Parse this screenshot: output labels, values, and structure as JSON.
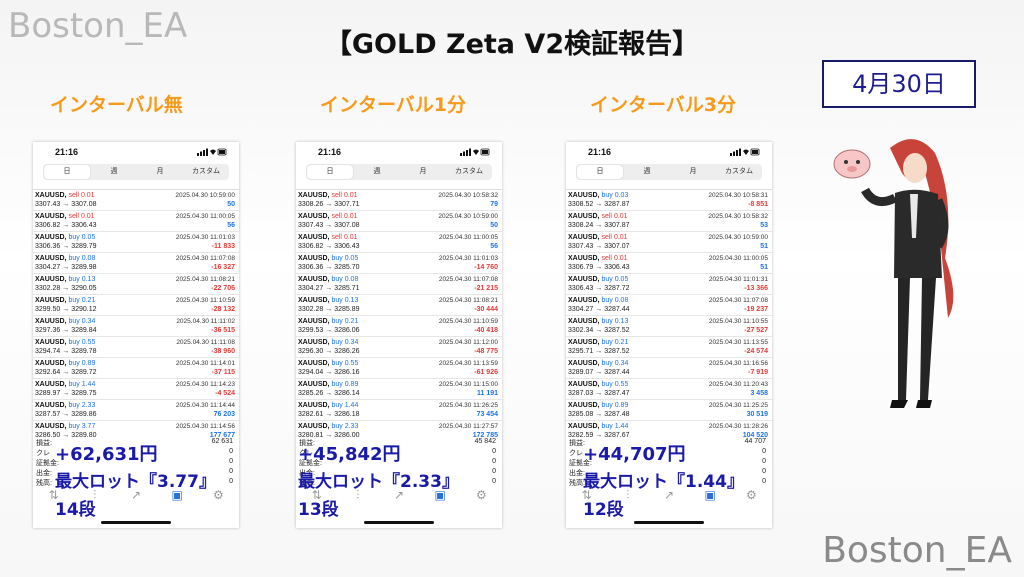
{
  "watermark_top": "Boston_EA",
  "watermark_bottom": "Boston_EA",
  "title": "【GOLD Zeta V2検証報告】",
  "date": "4月30日",
  "columns": [
    {
      "heading": "インターバル無",
      "time": "21:16",
      "tabs": [
        "日",
        "週",
        "月",
        "カスタム"
      ],
      "rows": [
        {
          "sym": "XAUUSD,",
          "side": "sell",
          "lot": "0.01",
          "price": "3307.43 → 3307.08",
          "time": "2025.04.30 10:59:00",
          "profit": "50",
          "neg": false
        },
        {
          "sym": "XAUUSD,",
          "side": "sell",
          "lot": "0.01",
          "price": "3306.82 → 3306.43",
          "time": "2025.04.30 11:00:05",
          "profit": "56",
          "neg": false
        },
        {
          "sym": "XAUUSD,",
          "side": "buy",
          "lot": "0.05",
          "price": "3306.36 → 3289.79",
          "time": "2025.04.30 11:01:03",
          "profit": "-11 833",
          "neg": true
        },
        {
          "sym": "XAUUSD,",
          "side": "buy",
          "lot": "0.08",
          "price": "3304.27 → 3289.98",
          "time": "2025.04.30 11:07:08",
          "profit": "-16 327",
          "neg": true
        },
        {
          "sym": "XAUUSD,",
          "side": "buy",
          "lot": "0.13",
          "price": "3302.28 → 3290.05",
          "time": "2025.04.30 11:08:21",
          "profit": "-22 706",
          "neg": true
        },
        {
          "sym": "XAUUSD,",
          "side": "buy",
          "lot": "0.21",
          "price": "3299.50 → 3290.12",
          "time": "2025.04.30 11:10:59",
          "profit": "-28 132",
          "neg": true
        },
        {
          "sym": "XAUUSD,",
          "side": "buy",
          "lot": "0.34",
          "price": "3297.36 → 3289.84",
          "time": "2025.04.30 11:11:02",
          "profit": "-36 515",
          "neg": true
        },
        {
          "sym": "XAUUSD,",
          "side": "buy",
          "lot": "0.55",
          "price": "3294.74 → 3289.78",
          "time": "2025.04.30 11:11:08",
          "profit": "-38 960",
          "neg": true
        },
        {
          "sym": "XAUUSD,",
          "side": "buy",
          "lot": "0.89",
          "price": "3292.64 → 3289.72",
          "time": "2025.04.30 11:14:01",
          "profit": "-37 115",
          "neg": true
        },
        {
          "sym": "XAUUSD,",
          "side": "buy",
          "lot": "1.44",
          "price": "3289.97 → 3289.75",
          "time": "2025.04.30 11:14:23",
          "profit": "-4 524",
          "neg": true
        },
        {
          "sym": "XAUUSD,",
          "side": "buy",
          "lot": "2.33",
          "price": "3287.57 → 3289.86",
          "time": "2025.04.30 11:14:44",
          "profit": "76 203",
          "neg": false
        },
        {
          "sym": "XAUUSD,",
          "side": "buy",
          "lot": "3.77",
          "price": "3286.50 → 3289.80",
          "time": "2025.04.30 11:14:56",
          "profit": "177 677",
          "neg": false
        }
      ],
      "summary": [
        {
          "label": "損益:",
          "value": "62 631"
        },
        {
          "label": "クレ",
          "value": "0"
        },
        {
          "label": "証拠金:",
          "value": "0"
        },
        {
          "label": "出金:",
          "value": "0"
        },
        {
          "label": "残高:",
          "value": "0"
        }
      ],
      "profit_overlay": "+62,631円",
      "maxlot_overlay": "最大ロット『3.77』",
      "steps_overlay": "14段"
    },
    {
      "heading": "インターバル1分",
      "time": "21:16",
      "tabs": [
        "日",
        "週",
        "月",
        "カスタム"
      ],
      "rows": [
        {
          "sym": "XAUUSD,",
          "side": "sell",
          "lot": "0.01",
          "price": "3308.26 → 3307.71",
          "time": "2025.04.30 10:58:32",
          "profit": "79",
          "neg": false
        },
        {
          "sym": "XAUUSD,",
          "side": "sell",
          "lot": "0.01",
          "price": "3307.43 → 3307.08",
          "time": "2025.04.30 10:59:00",
          "profit": "50",
          "neg": false
        },
        {
          "sym": "XAUUSD,",
          "side": "sell",
          "lot": "0.01",
          "price": "3306.82 → 3306.43",
          "time": "2025.04.30 11:00:05",
          "profit": "56",
          "neg": false
        },
        {
          "sym": "XAUUSD,",
          "side": "buy",
          "lot": "0.05",
          "price": "3306.36 → 3285.70",
          "time": "2025.04.30 11:01:03",
          "profit": "-14 760",
          "neg": true
        },
        {
          "sym": "XAUUSD,",
          "side": "buy",
          "lot": "0.08",
          "price": "3304.27 → 3285.71",
          "time": "2025.04.30 11:07:08",
          "profit": "-21 215",
          "neg": true
        },
        {
          "sym": "XAUUSD,",
          "side": "buy",
          "lot": "0.13",
          "price": "3302.28 → 3285.89",
          "time": "2025.04.30 11:08:21",
          "profit": "-30 444",
          "neg": true
        },
        {
          "sym": "XAUUSD,",
          "side": "buy",
          "lot": "0.21",
          "price": "3299.53 → 3286.06",
          "time": "2025.04.30 11:10:59",
          "profit": "-40 418",
          "neg": true
        },
        {
          "sym": "XAUUSD,",
          "side": "buy",
          "lot": "0.34",
          "price": "3296.30 → 3286.26",
          "time": "2025.04.30 11:12:00",
          "profit": "-48 775",
          "neg": true
        },
        {
          "sym": "XAUUSD,",
          "side": "buy",
          "lot": "0.55",
          "price": "3294.04 → 3286.16",
          "time": "2025.04.30 11:13:59",
          "profit": "-61 926",
          "neg": true
        },
        {
          "sym": "XAUUSD,",
          "side": "buy",
          "lot": "0.89",
          "price": "3285.26 → 3286.14",
          "time": "2025.04.30 11:15:00",
          "profit": "11 191",
          "neg": false
        },
        {
          "sym": "XAUUSD,",
          "side": "buy",
          "lot": "1.44",
          "price": "3282.61 → 3286.18",
          "time": "2025.04.30 11:26:25",
          "profit": "73 454",
          "neg": false
        },
        {
          "sym": "XAUUSD,",
          "side": "buy",
          "lot": "2.33",
          "price": "3280.81 → 3286.00",
          "time": "2025.04.30 11:27:57",
          "profit": "172 785",
          "neg": false
        }
      ],
      "summary": [
        {
          "label": "損益:",
          "value": "45 842"
        },
        {
          "label": "クレ",
          "value": "0"
        },
        {
          "label": "証拠金:",
          "value": "0"
        },
        {
          "label": "出金:",
          "value": "0"
        },
        {
          "label": "残高:",
          "value": "0"
        }
      ],
      "profit_overlay": "+45,842円",
      "maxlot_overlay": "最大ロット『2.33』",
      "steps_overlay": "13段"
    },
    {
      "heading": "インターバル3分",
      "time": "21:16",
      "tabs": [
        "日",
        "週",
        "月",
        "カスタム"
      ],
      "rows": [
        {
          "sym": "XAUUSD,",
          "side": "buy",
          "lot": "0.03",
          "price": "3308.52 → 3287.87",
          "time": "2025.04.30 10:58:31",
          "profit": "-8 851",
          "neg": true
        },
        {
          "sym": "XAUUSD,",
          "side": "sell",
          "lot": "0.01",
          "price": "3308.24 → 3307.87",
          "time": "2025.04.30 10:58:32",
          "profit": "53",
          "neg": false
        },
        {
          "sym": "XAUUSD,",
          "side": "sell",
          "lot": "0.01",
          "price": "3307.43 → 3307.07",
          "time": "2025.04.30 10:59:00",
          "profit": "51",
          "neg": false
        },
        {
          "sym": "XAUUSD,",
          "side": "sell",
          "lot": "0.01",
          "price": "3306.79 → 3306.43",
          "time": "2025.04.30 11:00:05",
          "profit": "51",
          "neg": false
        },
        {
          "sym": "XAUUSD,",
          "side": "buy",
          "lot": "0.05",
          "price": "3306.43 → 3287.72",
          "time": "2025.04.30 11:01:31",
          "profit": "-13 366",
          "neg": true
        },
        {
          "sym": "XAUUSD,",
          "side": "buy",
          "lot": "0.08",
          "price": "3304.27 → 3287.44",
          "time": "2025.04.30 11:07:08",
          "profit": "-19 237",
          "neg": true
        },
        {
          "sym": "XAUUSD,",
          "side": "buy",
          "lot": "0.13",
          "price": "3302.34 → 3287.52",
          "time": "2025.04.30 11:10:55",
          "profit": "-27 527",
          "neg": true
        },
        {
          "sym": "XAUUSD,",
          "side": "buy",
          "lot": "0.21",
          "price": "3295.71 → 3287.52",
          "time": "2025.04.30 11:13:55",
          "profit": "-24 574",
          "neg": true
        },
        {
          "sym": "XAUUSD,",
          "side": "buy",
          "lot": "0.34",
          "price": "3289.07 → 3287.44",
          "time": "2025.04.30 11:16:56",
          "profit": "-7 919",
          "neg": true
        },
        {
          "sym": "XAUUSD,",
          "side": "buy",
          "lot": "0.55",
          "price": "3287.03 → 3287.47",
          "time": "2025.04.30 11:20:43",
          "profit": "3 458",
          "neg": false
        },
        {
          "sym": "XAUUSD,",
          "side": "buy",
          "lot": "0.89",
          "price": "3285.08 → 3287.48",
          "time": "2025.04.30 11:25:25",
          "profit": "30 519",
          "neg": false
        },
        {
          "sym": "XAUUSD,",
          "side": "buy",
          "lot": "1.44",
          "price": "3282.59 → 3287.67",
          "time": "2025.04.30 11:28:26",
          "profit": "104 520",
          "neg": false
        }
      ],
      "summary": [
        {
          "label": "損益:",
          "value": "44 707"
        },
        {
          "label": "クレ",
          "value": "0"
        },
        {
          "label": "証拠金:",
          "value": "0"
        },
        {
          "label": "出金:",
          "value": "0"
        },
        {
          "label": "残高:",
          "value": "0"
        }
      ],
      "profit_overlay": "+44,707円",
      "maxlot_overlay": "最大ロット『1.44』",
      "steps_overlay": "12段"
    }
  ],
  "colors": {
    "buy": "#1a73e8",
    "sell": "#e53935",
    "heading": "#f59a1a",
    "overlay": "#1a1aa8"
  }
}
